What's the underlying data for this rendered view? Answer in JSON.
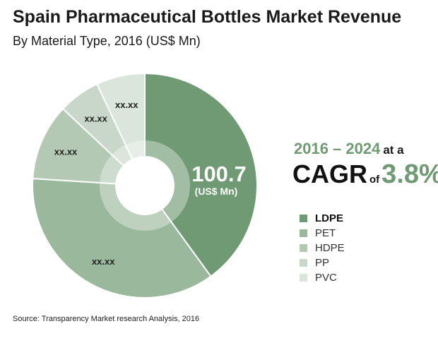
{
  "chart_data": {
    "type": "pie",
    "title": "Spain Pharmaceutical Bottles Market Revenue",
    "subtitle": "By Material Type, 2016 (US$ Mn)",
    "categories": [
      "LDPE",
      "PET",
      "HDPE",
      "PP",
      "PVC"
    ],
    "values": [
      40,
      36,
      11,
      6,
      7
    ],
    "value_labels": [
      "",
      "xx.xx",
      "xx.xx",
      "xx.xx",
      "xx.xx"
    ],
    "colors": [
      "#6f9a73",
      "#9ab89c",
      "#b3c9b4",
      "#c8d7c9",
      "#dae5db"
    ],
    "center_value": "100.7",
    "center_unit": "(US$ Mn)",
    "legend_position": "right"
  },
  "cagr": {
    "years": "2016 – 2024",
    "at_text": "at a",
    "cagr_text": "CAGR",
    "of_text": "of",
    "rate": "3.8%"
  },
  "source": "Source:  Transparency Market research Analysis, 2016"
}
